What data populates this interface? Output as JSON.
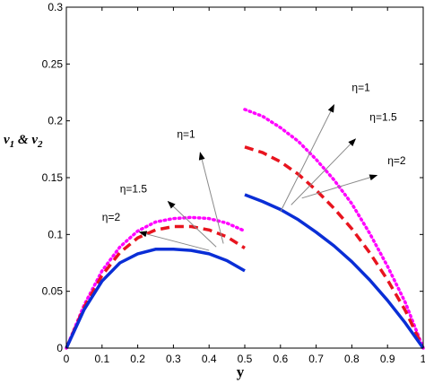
{
  "chart_data": {
    "type": "line",
    "xlabel": "y",
    "ylabel": "v1 & v2",
    "ylabel_parts": {
      "a": "v",
      "a_sub": "1",
      "amp": " & ",
      "b": "v",
      "b_sub": "2"
    },
    "xlim": [
      0,
      1
    ],
    "ylim": [
      0,
      0.3
    ],
    "xticks": [
      "0",
      "0.1",
      "0.2",
      "0.3",
      "0.4",
      "0.5",
      "0.6",
      "0.7",
      "0.8",
      "0.9",
      "1"
    ],
    "yticks": [
      "0",
      "0.05",
      "0.1",
      "0.15",
      "0.2",
      "0.25",
      "0.3"
    ],
    "grid": false,
    "series": [
      {
        "name": "η=1",
        "color": "#ff00ff",
        "style": "dotted",
        "segments": [
          {
            "x": [
              0,
              0.05,
              0.1,
              0.15,
              0.2,
              0.25,
              0.3,
              0.35,
              0.4,
              0.45,
              0.5
            ],
            "y": [
              0,
              0.038,
              0.068,
              0.089,
              0.103,
              0.111,
              0.114,
              0.115,
              0.114,
              0.11,
              0.103
            ]
          },
          {
            "x": [
              0.5,
              0.55,
              0.6,
              0.65,
              0.7,
              0.75,
              0.8,
              0.85,
              0.9,
              0.95,
              1.0
            ],
            "y": [
              0.21,
              0.204,
              0.194,
              0.182,
              0.166,
              0.148,
              0.127,
              0.101,
              0.072,
              0.04,
              0
            ]
          }
        ]
      },
      {
        "name": "η=1.5",
        "color": "#e8141e",
        "style": "dashed",
        "segments": [
          {
            "x": [
              0,
              0.05,
              0.1,
              0.15,
              0.2,
              0.25,
              0.3,
              0.35,
              0.4,
              0.45,
              0.5
            ],
            "y": [
              0,
              0.036,
              0.064,
              0.084,
              0.097,
              0.104,
              0.107,
              0.107,
              0.104,
              0.098,
              0.088
            ]
          },
          {
            "x": [
              0.5,
              0.55,
              0.6,
              0.65,
              0.7,
              0.75,
              0.8,
              0.85,
              0.9,
              0.95,
              1.0
            ],
            "y": [
              0.177,
              0.172,
              0.164,
              0.153,
              0.139,
              0.123,
              0.105,
              0.084,
              0.06,
              0.033,
              0
            ]
          }
        ]
      },
      {
        "name": "η=2",
        "color": "#0a2ed6",
        "style": "solid",
        "segments": [
          {
            "x": [
              0,
              0.05,
              0.1,
              0.15,
              0.2,
              0.25,
              0.3,
              0.35,
              0.4,
              0.45,
              0.5
            ],
            "y": [
              0,
              0.034,
              0.059,
              0.075,
              0.083,
              0.087,
              0.087,
              0.086,
              0.083,
              0.077,
              0.068
            ]
          },
          {
            "x": [
              0.5,
              0.55,
              0.6,
              0.65,
              0.7,
              0.75,
              0.8,
              0.85,
              0.9,
              0.95,
              1.0
            ],
            "y": [
              0.135,
              0.129,
              0.122,
              0.113,
              0.102,
              0.09,
              0.076,
              0.06,
              0.042,
              0.022,
              0
            ]
          }
        ]
      }
    ],
    "annotations": [
      {
        "text": "η=1",
        "arrow_from": [
          0.44,
          0.092
        ],
        "arrow_to": [
          0.375,
          0.172
        ],
        "label_at": [
          0.31,
          0.185
        ]
      },
      {
        "text": "η=1.5",
        "arrow_from": [
          0.42,
          0.089
        ],
        "arrow_to": [
          0.285,
          0.129
        ],
        "label_at": [
          0.15,
          0.137
        ]
      },
      {
        "text": "η=2",
        "arrow_from": [
          0.4,
          0.086
        ],
        "arrow_to": [
          0.205,
          0.102
        ],
        "label_at": [
          0.1,
          0.112
        ]
      },
      {
        "text": "η=1",
        "arrow_from": [
          0.6,
          0.12
        ],
        "arrow_to": [
          0.75,
          0.214
        ],
        "label_at": [
          0.8,
          0.226
        ]
      },
      {
        "text": "η=1.5",
        "arrow_from": [
          0.63,
          0.126
        ],
        "arrow_to": [
          0.81,
          0.184
        ],
        "label_at": [
          0.85,
          0.2
        ]
      },
      {
        "text": "η=2",
        "arrow_from": [
          0.66,
          0.132
        ],
        "arrow_to": [
          0.87,
          0.152
        ],
        "label_at": [
          0.9,
          0.162
        ]
      }
    ]
  }
}
